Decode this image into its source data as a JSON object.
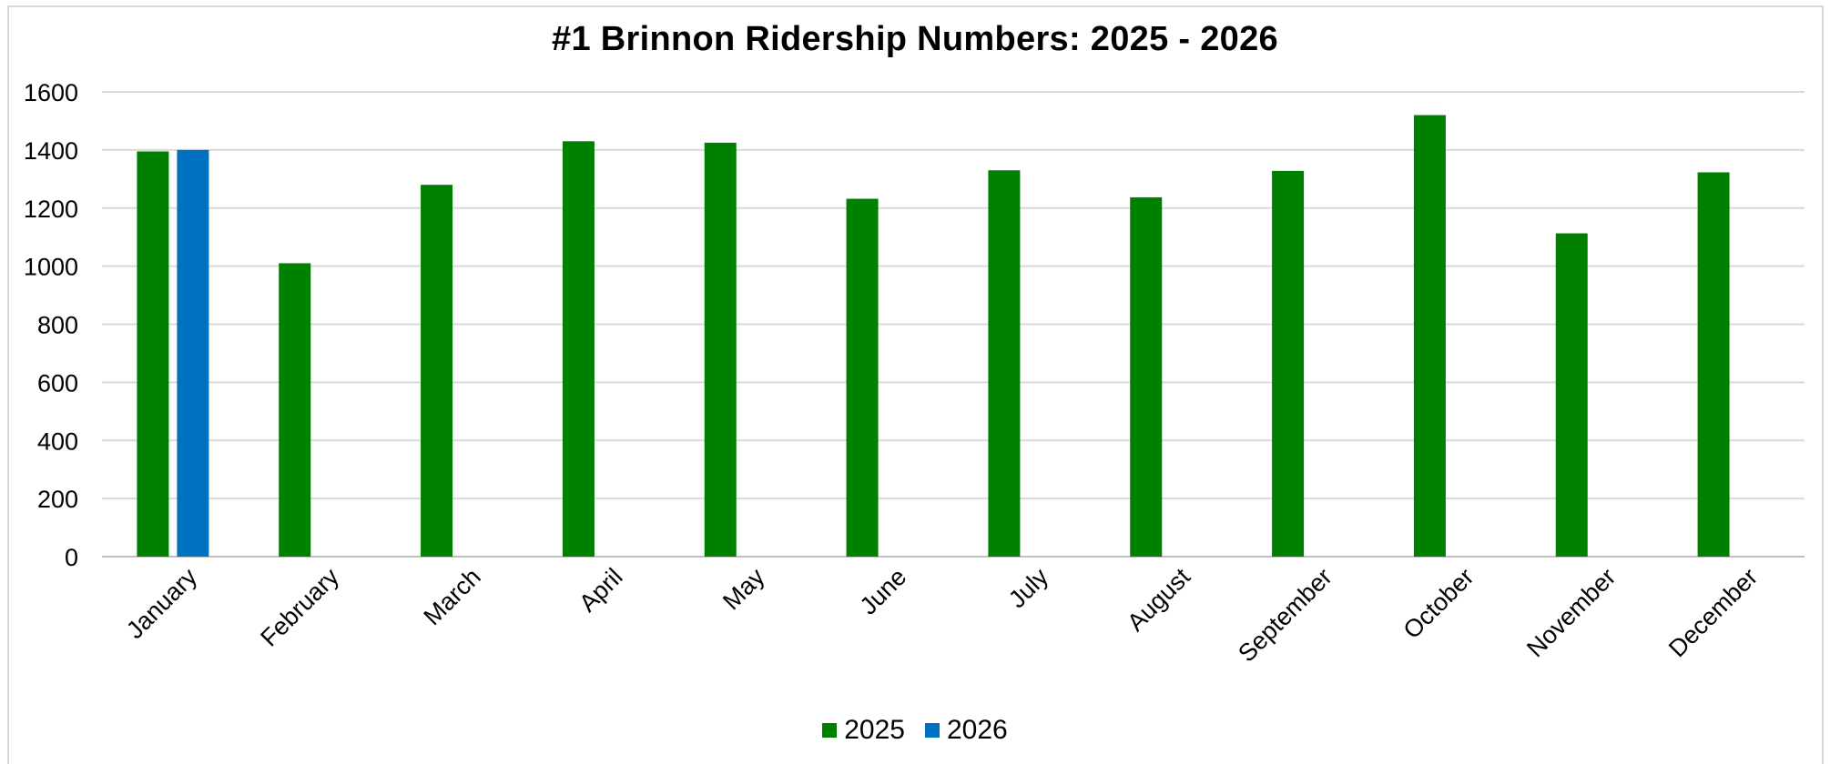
{
  "chart_data": {
    "type": "bar",
    "title": "#1 Brinnon Ridership Numbers:  2025 - 2026",
    "categories": [
      "January",
      "February",
      "March",
      "April",
      "May",
      "June",
      "July",
      "August",
      "September",
      "October",
      "November",
      "December"
    ],
    "series": [
      {
        "name": "2025",
        "color": "#008000",
        "values": [
          1395,
          1010,
          1280,
          1430,
          1425,
          1232,
          1330,
          1237,
          1328,
          1520,
          1113,
          1323
        ]
      },
      {
        "name": "2026",
        "color": "#0070C0",
        "values": [
          1400,
          null,
          null,
          null,
          null,
          null,
          null,
          null,
          null,
          null,
          null,
          null
        ]
      }
    ],
    "yticks": [
      0,
      200,
      400,
      600,
      800,
      1000,
      1200,
      1400,
      1600
    ],
    "ylim": [
      0,
      1600
    ],
    "grid": true,
    "legend_position": "bottom"
  }
}
